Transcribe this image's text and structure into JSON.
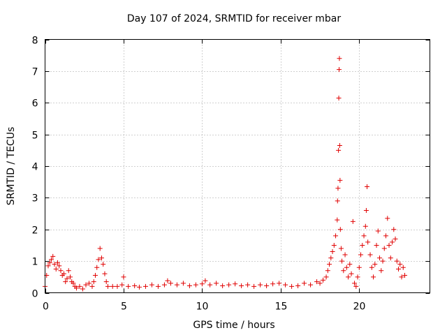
{
  "chart_data": {
    "type": "scatter",
    "title": "Day 107 of 2024, SRMTID for receiver mbar",
    "xlabel": "GPS time / hours",
    "ylabel": "SRMTID / TECUs",
    "xlim": [
      0,
      24.5
    ],
    "ylim": [
      0,
      8
    ],
    "xticks": [
      0,
      5,
      10,
      15,
      20
    ],
    "xtick_labels": [
      "0",
      "5",
      "10",
      "15",
      "20"
    ],
    "yticks": [
      0,
      1,
      2,
      3,
      4,
      5,
      6,
      7,
      8
    ],
    "ytick_labels": [
      "0",
      "1",
      "2",
      "3",
      "4",
      "5",
      "6",
      "7",
      "8"
    ],
    "grid": true,
    "marker": "+",
    "series": [
      {
        "name": "SRMTID",
        "color": "#e00000",
        "points": [
          [
            0.0,
            0.2
          ],
          [
            0.1,
            0.55
          ],
          [
            0.2,
            0.85
          ],
          [
            0.3,
            0.95
          ],
          [
            0.4,
            1.05
          ],
          [
            0.5,
            1.15
          ],
          [
            0.6,
            0.9
          ],
          [
            0.7,
            0.75
          ],
          [
            0.8,
            0.95
          ],
          [
            0.9,
            0.85
          ],
          [
            1.0,
            0.7
          ],
          [
            1.1,
            0.55
          ],
          [
            1.2,
            0.6
          ],
          [
            1.3,
            0.35
          ],
          [
            1.4,
            0.45
          ],
          [
            1.5,
            0.7
          ],
          [
            1.6,
            0.5
          ],
          [
            1.7,
            0.35
          ],
          [
            1.8,
            0.3
          ],
          [
            1.9,
            0.2
          ],
          [
            2.0,
            0.15
          ],
          [
            2.2,
            0.2
          ],
          [
            2.4,
            0.12
          ],
          [
            2.6,
            0.25
          ],
          [
            2.8,
            0.3
          ],
          [
            3.0,
            0.2
          ],
          [
            3.1,
            0.35
          ],
          [
            3.2,
            0.55
          ],
          [
            3.3,
            0.8
          ],
          [
            3.4,
            1.05
          ],
          [
            3.5,
            1.4
          ],
          [
            3.6,
            1.1
          ],
          [
            3.7,
            0.9
          ],
          [
            3.8,
            0.6
          ],
          [
            3.9,
            0.35
          ],
          [
            4.0,
            0.2
          ],
          [
            4.3,
            0.2
          ],
          [
            4.6,
            0.2
          ],
          [
            4.9,
            0.25
          ],
          [
            5.0,
            0.5
          ],
          [
            5.3,
            0.2
          ],
          [
            5.7,
            0.22
          ],
          [
            6.0,
            0.18
          ],
          [
            6.4,
            0.2
          ],
          [
            6.8,
            0.25
          ],
          [
            7.2,
            0.2
          ],
          [
            7.6,
            0.25
          ],
          [
            7.8,
            0.38
          ],
          [
            8.0,
            0.3
          ],
          [
            8.4,
            0.25
          ],
          [
            8.8,
            0.3
          ],
          [
            9.2,
            0.22
          ],
          [
            9.6,
            0.25
          ],
          [
            10.0,
            0.28
          ],
          [
            10.2,
            0.38
          ],
          [
            10.5,
            0.25
          ],
          [
            10.9,
            0.3
          ],
          [
            11.3,
            0.22
          ],
          [
            11.7,
            0.25
          ],
          [
            12.1,
            0.28
          ],
          [
            12.5,
            0.22
          ],
          [
            12.9,
            0.25
          ],
          [
            13.3,
            0.2
          ],
          [
            13.7,
            0.25
          ],
          [
            14.1,
            0.22
          ],
          [
            14.5,
            0.28
          ],
          [
            14.9,
            0.3
          ],
          [
            15.3,
            0.25
          ],
          [
            15.7,
            0.2
          ],
          [
            16.1,
            0.22
          ],
          [
            16.5,
            0.3
          ],
          [
            16.9,
            0.25
          ],
          [
            17.3,
            0.35
          ],
          [
            17.5,
            0.3
          ],
          [
            17.7,
            0.4
          ],
          [
            17.9,
            0.5
          ],
          [
            18.0,
            0.7
          ],
          [
            18.1,
            0.9
          ],
          [
            18.2,
            1.1
          ],
          [
            18.3,
            1.3
          ],
          [
            18.4,
            1.5
          ],
          [
            18.5,
            1.8
          ],
          [
            18.6,
            2.3
          ],
          [
            18.62,
            2.9
          ],
          [
            18.65,
            3.3
          ],
          [
            18.68,
            4.5
          ],
          [
            18.7,
            6.15
          ],
          [
            18.72,
            7.05
          ],
          [
            18.74,
            7.4
          ],
          [
            18.76,
            4.65
          ],
          [
            18.78,
            3.55
          ],
          [
            18.8,
            2.0
          ],
          [
            18.85,
            1.4
          ],
          [
            18.9,
            1.0
          ],
          [
            19.0,
            0.7
          ],
          [
            19.1,
            1.2
          ],
          [
            19.2,
            0.8
          ],
          [
            19.3,
            0.5
          ],
          [
            19.4,
            0.9
          ],
          [
            19.5,
            0.6
          ],
          [
            19.6,
            2.25
          ],
          [
            19.7,
            0.3
          ],
          [
            19.8,
            0.2
          ],
          [
            19.9,
            0.5
          ],
          [
            20.0,
            0.8
          ],
          [
            20.1,
            1.2
          ],
          [
            20.2,
            1.5
          ],
          [
            20.3,
            1.8
          ],
          [
            20.4,
            2.1
          ],
          [
            20.45,
            2.6
          ],
          [
            20.5,
            3.35
          ],
          [
            20.55,
            1.6
          ],
          [
            20.7,
            1.2
          ],
          [
            20.8,
            0.8
          ],
          [
            20.9,
            0.5
          ],
          [
            21.0,
            0.9
          ],
          [
            21.1,
            1.5
          ],
          [
            21.2,
            1.95
          ],
          [
            21.3,
            1.1
          ],
          [
            21.4,
            0.7
          ],
          [
            21.5,
            1.0
          ],
          [
            21.6,
            1.4
          ],
          [
            21.7,
            1.8
          ],
          [
            21.8,
            2.35
          ],
          [
            21.9,
            1.5
          ],
          [
            22.0,
            1.1
          ],
          [
            22.1,
            1.6
          ],
          [
            22.2,
            2.0
          ],
          [
            22.3,
            1.7
          ],
          [
            22.4,
            1.0
          ],
          [
            22.5,
            0.75
          ],
          [
            22.6,
            0.9
          ],
          [
            22.7,
            0.5
          ],
          [
            22.8,
            0.8
          ],
          [
            22.9,
            0.55
          ]
        ]
      }
    ]
  }
}
